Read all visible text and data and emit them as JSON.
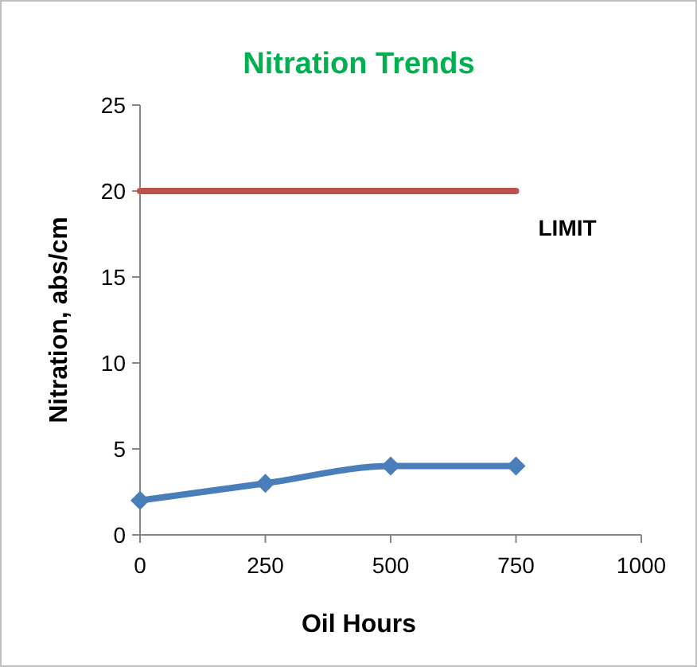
{
  "chart_data": {
    "type": "line",
    "title": "Nitration Trends",
    "xlabel": "Oil Hours",
    "ylabel": "Nitration, abs/cm",
    "series": [
      {
        "name": "LIMIT",
        "color": "#c0504d",
        "x": [
          0,
          750
        ],
        "values": [
          20,
          20
        ],
        "marker": "none"
      },
      {
        "color": "#4a7ebb",
        "x": [
          0,
          250,
          500,
          750
        ],
        "values": [
          2,
          3,
          4,
          4
        ],
        "marker": "diamond"
      }
    ],
    "xlim": [
      0,
      1000
    ],
    "xticks": [
      0,
      250,
      500,
      750,
      1000
    ],
    "ylim": [
      0,
      25
    ],
    "yticks": [
      0,
      5,
      10,
      15,
      20,
      25
    ],
    "grid": false,
    "legend": false,
    "line_style": "solid"
  }
}
